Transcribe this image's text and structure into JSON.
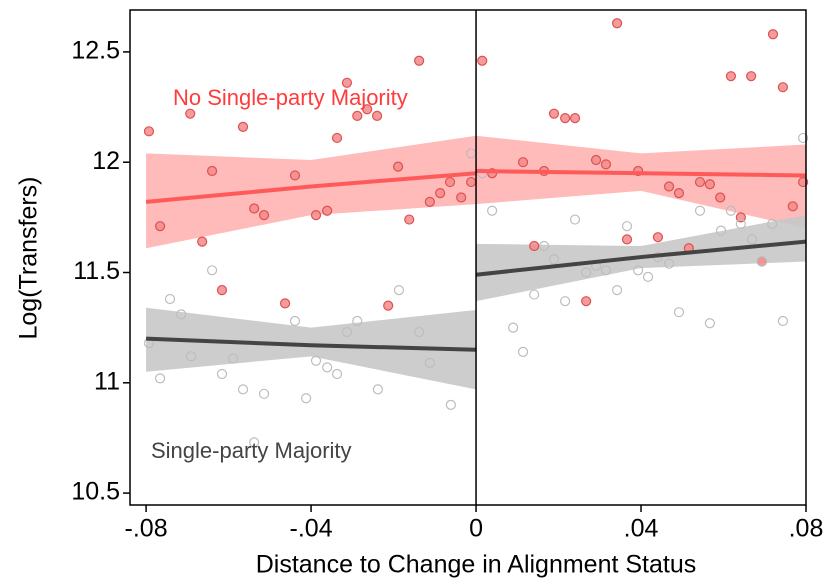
{
  "chart_data": {
    "type": "scatter",
    "xlabel": "Distance to Change in Alignment Status",
    "ylabel": "Log(Transfers)",
    "xlim": [
      -0.0839,
      0.08
    ],
    "ylim": [
      10.446,
      12.69
    ],
    "xticks": [
      {
        "value": -0.08,
        "label": "-.08"
      },
      {
        "value": -0.04,
        "label": "-.04"
      },
      0,
      {
        "value": 0.04,
        "label": ".04"
      },
      {
        "value": 0.08,
        "label": ".08"
      }
    ],
    "yticks": [
      10.5,
      11,
      11.5,
      12,
      12.5
    ],
    "vline": 0,
    "series": [
      {
        "name": "No Single-party Majority",
        "color": "#ff5a5a",
        "band_color": "#ffb3b3",
        "point_style": "filled",
        "x": [
          -0.0793,
          -0.0766,
          -0.0693,
          -0.0664,
          -0.064,
          -0.0616,
          -0.0565,
          -0.0538,
          -0.0514,
          -0.0463,
          -0.0439,
          -0.0388,
          -0.0361,
          -0.0337,
          -0.0313,
          -0.0288,
          -0.0264,
          -0.024,
          -0.0213,
          -0.0189,
          -0.0162,
          -0.0138,
          -0.0112,
          -0.0087,
          -0.0063,
          -0.0036,
          -0.0012,
          0.0015,
          0.0039,
          0.0114,
          0.0141,
          0.0165,
          0.0189,
          0.0216,
          0.024,
          0.0267,
          0.0291,
          0.0315,
          0.0342,
          0.0366,
          0.0393,
          0.0441,
          0.0468,
          0.0492,
          0.0516,
          0.0543,
          0.0567,
          0.0592,
          0.0618,
          0.0642,
          0.0667,
          0.0693,
          0.072,
          0.0744,
          0.0768,
          0.0793
        ],
        "values": [
          12.14,
          11.71,
          12.22,
          11.64,
          11.96,
          11.42,
          12.16,
          11.79,
          11.76,
          11.36,
          11.94,
          11.76,
          11.78,
          12.11,
          12.36,
          12.21,
          12.24,
          12.21,
          11.35,
          11.98,
          11.74,
          12.46,
          11.82,
          11.86,
          11.91,
          11.84,
          11.91,
          12.46,
          11.95,
          12.0,
          11.62,
          11.96,
          12.22,
          12.2,
          12.2,
          11.37,
          12.01,
          11.99,
          12.63,
          11.65,
          11.96,
          11.66,
          11.89,
          11.86,
          11.61,
          11.91,
          11.9,
          11.84,
          12.39,
          11.75,
          12.39,
          11.55,
          12.58,
          12.34,
          11.8,
          11.91
        ],
        "fits": [
          {
            "x": [
              -0.08,
              -0.04,
              0
            ],
            "values": [
              11.82,
              11.89,
              11.95
            ],
            "lower": [
              11.61,
              11.76,
              11.81
            ],
            "upper": [
              12.04,
              12.01,
              12.12
            ]
          },
          {
            "x": [
              0,
              0.04,
              0.08
            ],
            "values": [
              11.96,
              11.95,
              11.94
            ],
            "lower": [
              11.81,
              11.87,
              11.7
            ],
            "upper": [
              12.12,
              12.04,
              12.08
            ]
          }
        ]
      },
      {
        "name": "Single-party Majority",
        "color": "#444444",
        "band_color": "#c8c8c8",
        "point_style": "hollow",
        "x": [
          -0.0793,
          -0.0766,
          -0.0742,
          -0.0715,
          -0.0691,
          -0.064,
          -0.0616,
          -0.0589,
          -0.0565,
          -0.0538,
          -0.0514,
          -0.0439,
          -0.0412,
          -0.0388,
          -0.0361,
          -0.0337,
          -0.0313,
          -0.0288,
          -0.0238,
          -0.0187,
          -0.0138,
          -0.0112,
          -0.0061,
          -0.0012,
          0.0015,
          0.0039,
          0.009,
          0.0114,
          0.0141,
          0.0165,
          0.0189,
          0.0216,
          0.024,
          0.0267,
          0.0291,
          0.0315,
          0.0342,
          0.0366,
          0.0393,
          0.0417,
          0.0441,
          0.0468,
          0.0492,
          0.0543,
          0.0567,
          0.0594,
          0.0618,
          0.0642,
          0.0669,
          0.0693,
          0.0718,
          0.0744,
          0.0793
        ],
        "values": [
          11.18,
          11.02,
          11.38,
          11.31,
          11.12,
          11.51,
          11.04,
          11.11,
          10.97,
          10.73,
          10.95,
          11.28,
          10.93,
          11.1,
          11.07,
          11.04,
          11.23,
          11.28,
          10.97,
          11.42,
          11.23,
          11.09,
          10.9,
          12.04,
          11.95,
          11.78,
          11.25,
          11.14,
          11.4,
          11.62,
          11.56,
          11.37,
          11.74,
          11.5,
          11.53,
          11.51,
          11.42,
          11.71,
          11.51,
          11.48,
          11.57,
          11.54,
          11.32,
          11.78,
          11.27,
          11.69,
          11.78,
          11.72,
          11.65,
          11.55,
          11.72,
          11.28,
          12.11
        ],
        "fits": [
          {
            "x": [
              -0.08,
              -0.04,
              0
            ],
            "values": [
              11.2,
              11.17,
              11.15
            ],
            "lower": [
              11.05,
              11.12,
              10.97
            ],
            "upper": [
              11.34,
              11.25,
              11.33
            ]
          },
          {
            "x": [
              0,
              0.04,
              0.08
            ],
            "values": [
              11.49,
              11.57,
              11.64
            ],
            "lower": [
              11.37,
              11.52,
              11.55
            ],
            "upper": [
              11.63,
              11.62,
              11.76
            ]
          }
        ]
      }
    ]
  }
}
